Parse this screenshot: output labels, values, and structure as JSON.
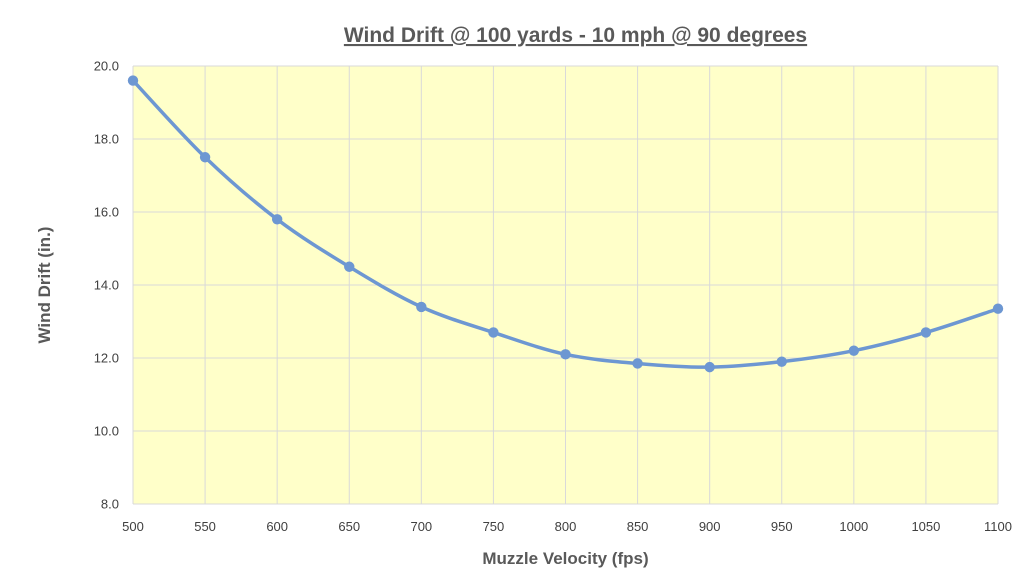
{
  "chart_data": {
    "type": "line",
    "title": "Wind Drift @ 100 yards - 10 mph @ 90 degrees",
    "xlabel": "Muzzle Velocity (fps)",
    "ylabel": "Wind Drift (in.)",
    "x": [
      500,
      550,
      600,
      650,
      700,
      750,
      800,
      850,
      900,
      950,
      1000,
      1050,
      1100
    ],
    "series": [
      {
        "values": [
          19.6,
          17.5,
          15.8,
          14.5,
          13.4,
          12.7,
          12.1,
          11.85,
          11.75,
          11.9,
          12.2,
          12.7,
          13.35
        ]
      }
    ],
    "xlim": [
      500,
      1100
    ],
    "ylim": [
      8.0,
      20.0
    ],
    "x_ticks": [
      "500",
      "550",
      "600",
      "650",
      "700",
      "750",
      "800",
      "850",
      "900",
      "950",
      "1000",
      "1050",
      "1100"
    ],
    "y_ticks": [
      "8.0",
      "10.0",
      "12.0",
      "14.0",
      "16.0",
      "18.0",
      "20.0"
    ],
    "grid": true,
    "smooth": true,
    "colors": {
      "plot_background": "#ffffc9",
      "line": "#6d97d2",
      "grid": "#d9d9d9"
    }
  }
}
